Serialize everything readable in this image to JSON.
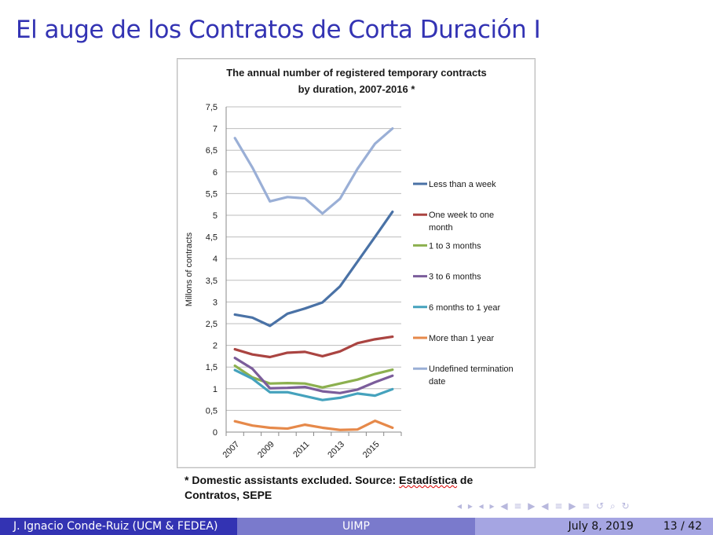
{
  "slide": {
    "title": "El auge de los Contratos de Corta Duración I",
    "note_part1": "* Domestic assistants excluded. Source: ",
    "note_link": "Estadística",
    "note_part2": " de Contratos, SEPE",
    "nav_symbols": "◂ ▸ ◂ ▸ ◀ ≡ ▶ ◀ ≡ ▶ ≡ ↺ ⌕ ↻"
  },
  "footer": {
    "author": "J. Ignacio Conde-Ruiz (UCM & FEDEA)",
    "institution": "UIMP",
    "date": "July 8, 2019",
    "page": "13 / 42"
  },
  "chart_data": {
    "type": "line",
    "title_line1": "The annual number of registered temporary contracts",
    "title_line2": "by duration, 2007-2016 *",
    "ylabel": "Millons of contracts",
    "xlabel": "",
    "ylim": [
      0,
      7.5
    ],
    "yticks": [
      "0",
      "0,5",
      "1",
      "1,5",
      "2",
      "2,5",
      "3",
      "3,5",
      "4",
      "4,5",
      "5",
      "5,5",
      "6",
      "6,5",
      "7",
      "7,5"
    ],
    "x": [
      2007,
      2008,
      2009,
      2010,
      2011,
      2012,
      2013,
      2014,
      2015,
      2016
    ],
    "xtick_labels": [
      "2007",
      "2009",
      "2011",
      "2013",
      "2015"
    ],
    "grid": true,
    "legend_position": "right",
    "series": [
      {
        "name": "Less than a week",
        "legend_lines": [
          "Less than a week"
        ],
        "color": "#4a72a6",
        "values": [
          2.71,
          2.64,
          2.45,
          2.73,
          2.85,
          2.99,
          3.36,
          3.93,
          4.5,
          5.08
        ]
      },
      {
        "name": "One week to one month",
        "legend_lines": [
          "One week to one",
          "month"
        ],
        "color": "#aa4441",
        "values": [
          1.91,
          1.79,
          1.73,
          1.83,
          1.85,
          1.75,
          1.86,
          2.05,
          2.14,
          2.2
        ]
      },
      {
        "name": "1 to 3 months",
        "legend_lines": [
          "1 to 3 months"
        ],
        "color": "#8cb04f",
        "values": [
          1.53,
          1.26,
          1.12,
          1.13,
          1.12,
          1.03,
          1.12,
          1.21,
          1.34,
          1.44
        ]
      },
      {
        "name": "3 to 6 months",
        "legend_lines": [
          "3 to 6 months"
        ],
        "color": "#7b5d9b",
        "values": [
          1.71,
          1.46,
          1.01,
          1.02,
          1.04,
          0.94,
          0.9,
          0.98,
          1.15,
          1.3
        ]
      },
      {
        "name": "6 months to 1 year",
        "legend_lines": [
          "6 months to 1 year"
        ],
        "color": "#45a2bd",
        "values": [
          1.43,
          1.23,
          0.92,
          0.92,
          0.83,
          0.74,
          0.79,
          0.89,
          0.84,
          0.99
        ]
      },
      {
        "name": "More than 1 year",
        "legend_lines": [
          "More than 1 year"
        ],
        "color": "#e6894a",
        "values": [
          0.25,
          0.15,
          0.1,
          0.08,
          0.17,
          0.1,
          0.05,
          0.06,
          0.26,
          0.1
        ]
      },
      {
        "name": "Undefined termination date",
        "legend_lines": [
          "Undefined termination",
          "date"
        ],
        "color": "#9aafd6",
        "values": [
          6.78,
          6.1,
          5.32,
          5.42,
          5.39,
          5.04,
          5.38,
          6.07,
          6.65,
          7.0
        ]
      }
    ]
  }
}
